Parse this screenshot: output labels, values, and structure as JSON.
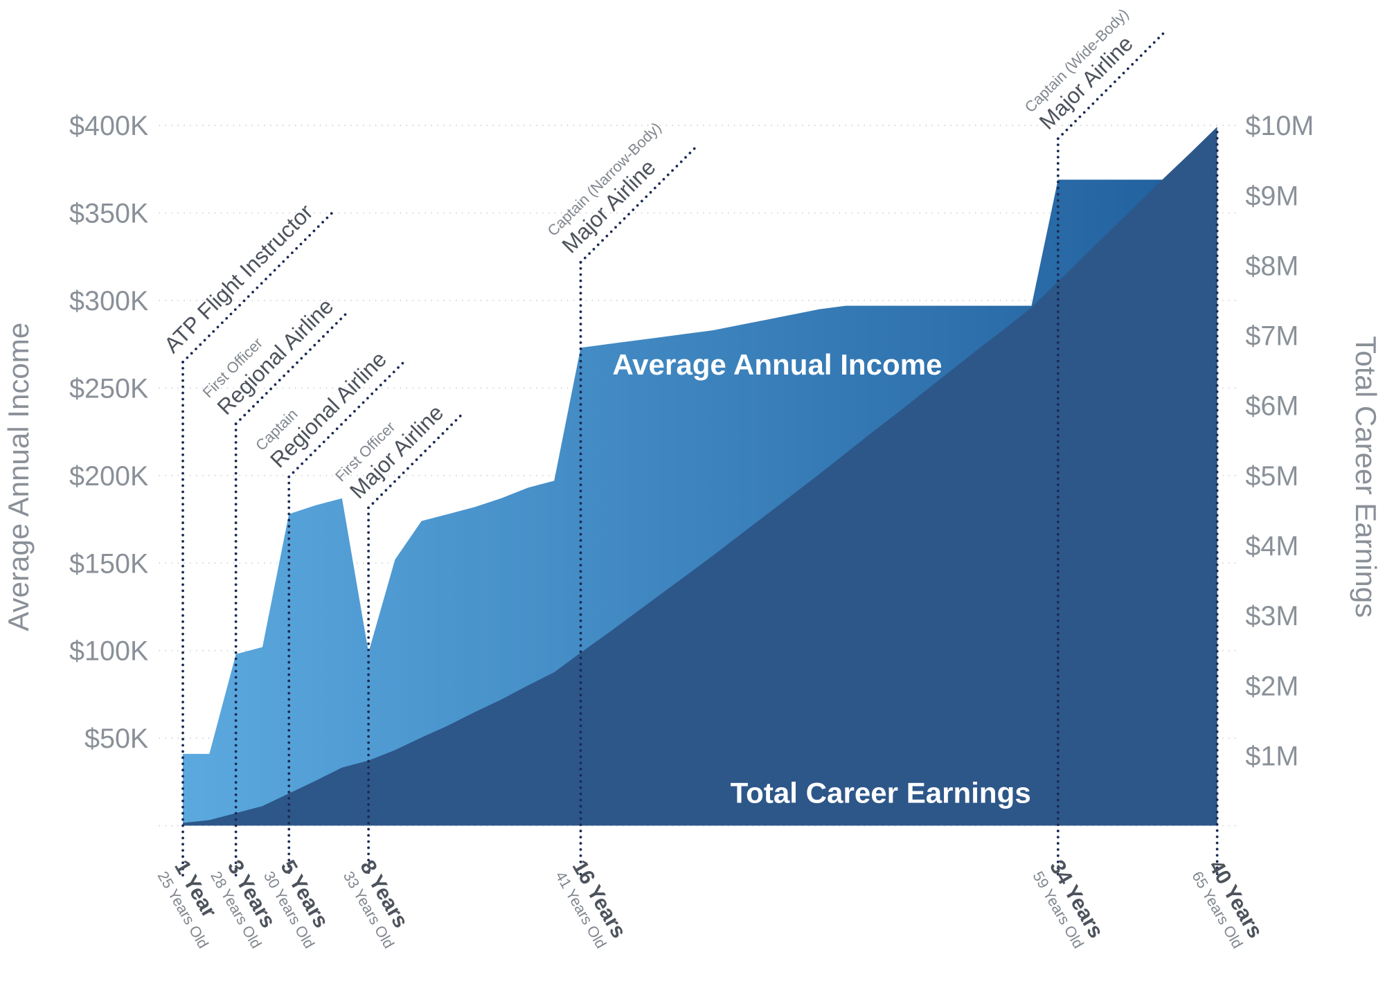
{
  "chart_data": {
    "type": "area",
    "y_title": "Average Annual Income",
    "y2_title": "Total Career Earnings",
    "xlim": [
      1,
      40
    ],
    "ylim": [
      0,
      400
    ],
    "yticks": [
      {
        "value": 50,
        "label": "$50K"
      },
      {
        "value": 100,
        "label": "$100K"
      },
      {
        "value": 150,
        "label": "$150K"
      },
      {
        "value": 200,
        "label": "$200K"
      },
      {
        "value": 250,
        "label": "$250K"
      },
      {
        "value": 300,
        "label": "$300K"
      },
      {
        "value": 350,
        "label": "$350K"
      },
      {
        "value": 400,
        "label": "$400K"
      }
    ],
    "y2lim": [
      0,
      10
    ],
    "y2ticks": [
      {
        "value": 1,
        "label": "$1M"
      },
      {
        "value": 2,
        "label": "$2M"
      },
      {
        "value": 3,
        "label": "$3M"
      },
      {
        "value": 4,
        "label": "$4M"
      },
      {
        "value": 5,
        "label": "$5M"
      },
      {
        "value": 6,
        "label": "$6M"
      },
      {
        "value": 7,
        "label": "$7M"
      },
      {
        "value": 8,
        "label": "$8M"
      },
      {
        "value": 9,
        "label": "$9M"
      },
      {
        "value": 10,
        "label": "$10M"
      }
    ],
    "grid": true,
    "x": [
      1,
      2,
      3,
      4,
      5,
      6,
      7,
      8,
      9,
      10,
      11,
      12,
      13,
      14,
      15,
      16,
      17,
      18,
      19,
      20,
      21,
      22,
      23,
      24,
      25,
      26,
      27,
      28,
      29,
      30,
      31,
      32,
      33,
      34,
      35,
      36,
      37,
      38,
      39,
      40
    ],
    "series": [
      {
        "name": "Average Annual Income",
        "axis": "y",
        "color": [
          "#5ba9df",
          "#1f5e9c"
        ],
        "values": [
          41,
          41,
          98,
          102,
          178,
          183,
          187,
          99,
          152,
          174,
          178,
          182,
          187,
          193,
          197,
          273,
          275,
          277,
          279,
          281,
          283,
          286,
          289,
          292,
          295,
          297,
          297,
          297,
          297,
          297,
          297,
          297,
          297,
          369,
          369,
          369,
          369,
          369,
          369,
          369
        ]
      },
      {
        "name": "Total Career Earnings",
        "axis": "y2",
        "color": "#2d5789",
        "values": [
          0.04,
          0.08,
          0.18,
          0.28,
          0.46,
          0.64,
          0.83,
          0.93,
          1.08,
          1.26,
          1.43,
          1.62,
          1.8,
          2.0,
          2.19,
          2.47,
          2.74,
          3.02,
          3.3,
          3.58,
          3.86,
          4.15,
          4.44,
          4.73,
          5.02,
          5.32,
          5.62,
          5.91,
          6.21,
          6.51,
          6.81,
          7.1,
          7.4,
          7.77,
          8.14,
          8.51,
          8.88,
          9.25,
          9.61,
          9.98
        ]
      }
    ],
    "milestones": [
      {
        "x": 1,
        "tick": "1 Year",
        "age": "25 Years Old",
        "position": "ATP Flight Instructor"
      },
      {
        "x": 3,
        "tick": "3 Years",
        "age": "28 Years Old",
        "role": "First Officer",
        "position": "Regional Airline"
      },
      {
        "x": 5,
        "tick": "5 Years",
        "age": "30 Years Old",
        "role": "Captain",
        "position": "Regional Airline"
      },
      {
        "x": 8,
        "tick": "8 Years",
        "age": "33 Years Old",
        "role": "First Officer",
        "position": "Major Airline"
      },
      {
        "x": 16,
        "tick": "16 Years",
        "age": "41 Years Old",
        "role": "Captain (Narrow-Body)",
        "position": "Major Airline"
      },
      {
        "x": 34,
        "tick": "34 Years",
        "age": "59 Years Old",
        "role": "Captain (Wide-Body)",
        "position": "Major Airline"
      },
      {
        "x": 40,
        "tick": "40 Years",
        "age": "65 Years Old"
      }
    ]
  }
}
